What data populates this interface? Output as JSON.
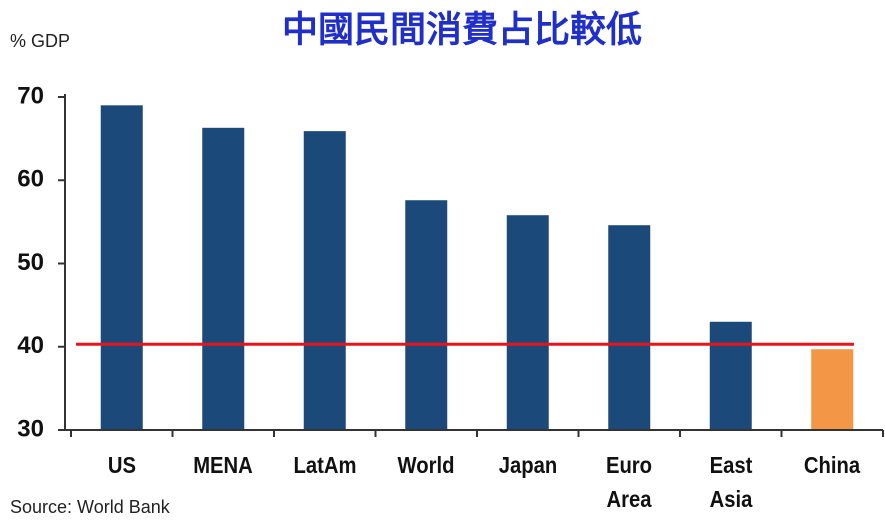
{
  "chart_data": {
    "type": "bar",
    "title": "中國民間消費占比較低",
    "y_label": "% GDP",
    "source": "Source: World Bank",
    "categories": [
      "US",
      "MENA",
      "LatAm",
      "World",
      "Japan",
      "Euro Area",
      "East Asia",
      "China"
    ],
    "values": [
      69,
      66.3,
      65.9,
      57.6,
      55.8,
      54.6,
      43,
      39.7
    ],
    "colors": [
      "#1b4a7a",
      "#1b4a7a",
      "#1b4a7a",
      "#1b4a7a",
      "#1b4a7a",
      "#1b4a7a",
      "#1b4a7a",
      "#f39646"
    ],
    "reference_line": 40.3,
    "reference_color": "#e8141b",
    "ylim": [
      30,
      70
    ],
    "yticks": [
      30,
      40,
      50,
      60,
      70
    ],
    "grid": false
  }
}
